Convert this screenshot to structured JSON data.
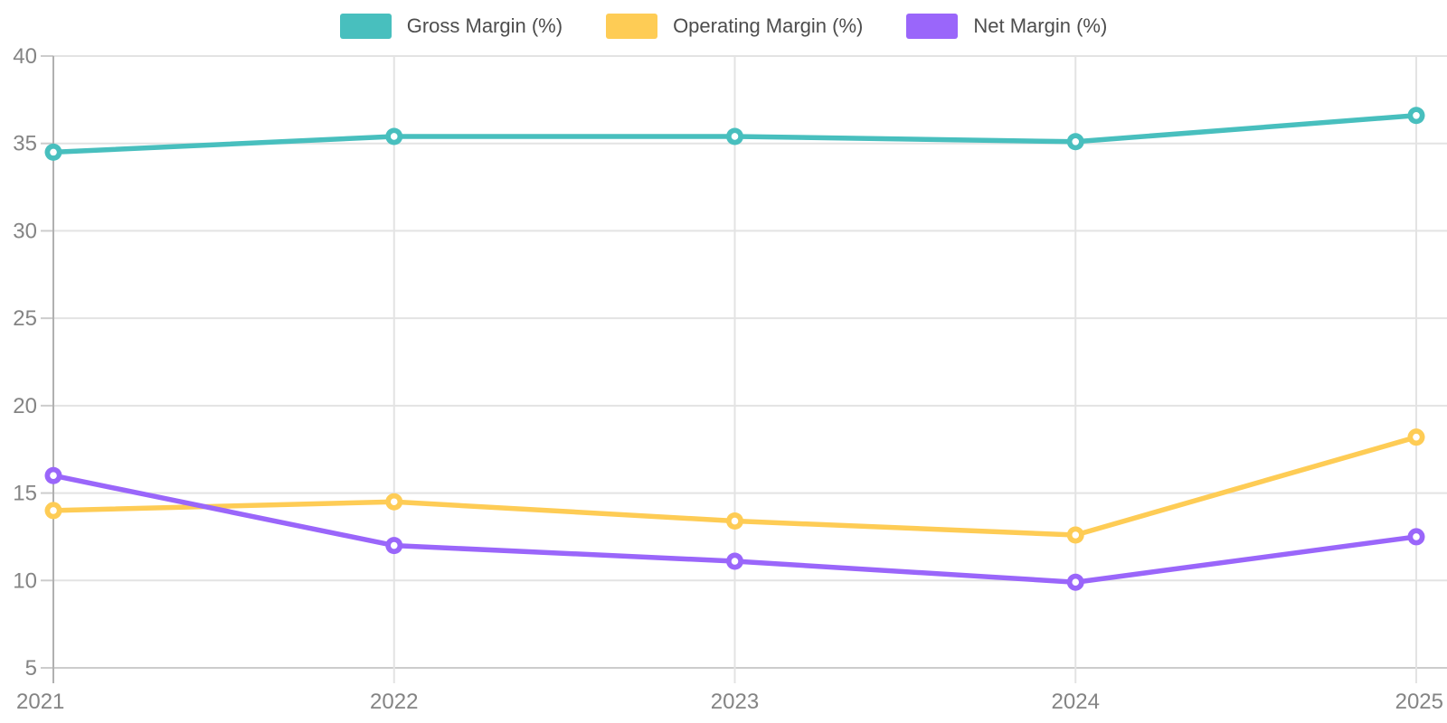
{
  "chart_data": {
    "type": "line",
    "x": [
      "2021",
      "2022",
      "2023",
      "2024",
      "2025"
    ],
    "series": [
      {
        "name": "Gross Margin (%)",
        "color": "#48BFBE",
        "values": [
          34.5,
          35.4,
          35.4,
          35.1,
          36.6
        ]
      },
      {
        "name": "Operating Margin (%)",
        "color": "#FECC55",
        "values": [
          14.0,
          14.5,
          13.4,
          12.6,
          18.2
        ]
      },
      {
        "name": "Net Margin (%)",
        "color": "#9A66FA",
        "values": [
          16.0,
          12.0,
          11.1,
          9.9,
          12.5
        ]
      }
    ],
    "title": "",
    "xlabel": "",
    "ylabel": "",
    "ylim": [
      5,
      40
    ],
    "ytick_step": 5,
    "y_tick_labels": [
      "5",
      "10",
      "15",
      "20",
      "25",
      "30",
      "35",
      "40"
    ],
    "x_tick_labels": [
      "2021",
      "2022",
      "2023",
      "2024",
      "2025"
    ],
    "grid": true,
    "legend_position": "top"
  },
  "colors": {
    "grid_line": "#e3e3e3",
    "bottom_line": "#cccccc",
    "axis_line": "#b0b0b0",
    "tick_label": "#848484",
    "legend_label": "#4d4d4d",
    "background": "#ffffff"
  }
}
